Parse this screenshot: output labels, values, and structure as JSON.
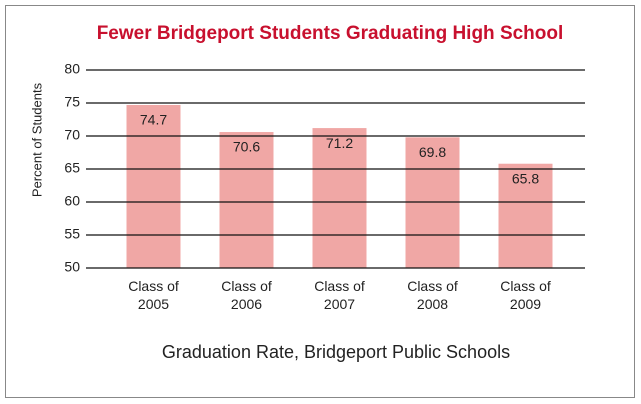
{
  "chart_data": {
    "type": "bar",
    "title": "Fewer Bridgeport Students Graduating High School",
    "y_label": "Percent of Students",
    "x_label": "Graduation Rate, Bridgeport Public Schools",
    "categories": [
      "Class of 2005",
      "Class of 2006",
      "Class of 2007",
      "Class of 2008",
      "Class of 2009"
    ],
    "values": [
      74.7,
      70.6,
      71.2,
      69.8,
      65.8
    ],
    "color": "#f0a7a5",
    "ylim": [
      50,
      80
    ],
    "yticks": [
      50,
      55,
      60,
      65,
      70,
      75,
      80
    ],
    "grid": true
  }
}
